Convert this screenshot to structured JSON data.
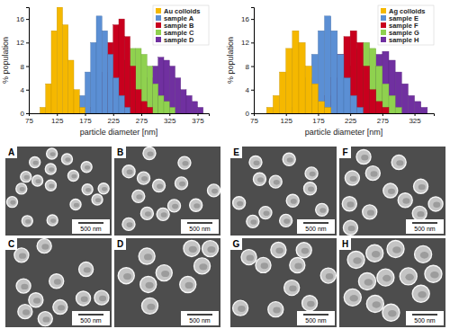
{
  "chart_data": [
    {
      "type": "histogram",
      "x_label": "particle diameter [nm]",
      "y_label": "% population",
      "bins": [
        75,
        85,
        95,
        105,
        115,
        125,
        135,
        145,
        155,
        165,
        175,
        185,
        195,
        205,
        215,
        225,
        235,
        245,
        255,
        265,
        275,
        285,
        295,
        305,
        315,
        325,
        335,
        345,
        355,
        365,
        375,
        385,
        395
      ],
      "series": [
        {
          "name": "Au colloids",
          "color": "#f5b800",
          "values": [
            0,
            0,
            1,
            5,
            14,
            18,
            15,
            9,
            4,
            1,
            0,
            0,
            0,
            0,
            0,
            0,
            0,
            0,
            0,
            0,
            0,
            0,
            0,
            0,
            0,
            0,
            0,
            0,
            0,
            0,
            0,
            0
          ]
        },
        {
          "name": "sample A",
          "color": "#5b8fd4",
          "values": [
            0,
            0,
            0,
            0,
            0,
            0,
            0,
            0,
            1,
            3,
            7,
            12,
            16.5,
            14,
            10,
            6,
            3,
            1,
            0,
            0,
            0,
            0,
            0,
            0,
            0,
            0,
            0,
            0,
            0,
            0,
            0,
            0
          ]
        },
        {
          "name": "sample B",
          "color": "#c8001e",
          "values": [
            0,
            0,
            0,
            0,
            0,
            0,
            0,
            0,
            0,
            0,
            0,
            1,
            3,
            7,
            12,
            15,
            16,
            13,
            8,
            4,
            2,
            1,
            0,
            0,
            0,
            0,
            0,
            0,
            0,
            0,
            0,
            0
          ]
        },
        {
          "name": "sample C",
          "color": "#8fd14f",
          "values": [
            0,
            0,
            0,
            0,
            0,
            0,
            0,
            0,
            0,
            0,
            0,
            0,
            0,
            0,
            1,
            3,
            6,
            9,
            11,
            11,
            10,
            8,
            5,
            3,
            2,
            1,
            0,
            0,
            0,
            0,
            0,
            0
          ]
        },
        {
          "name": "sample D",
          "color": "#7030a0",
          "values": [
            0,
            0,
            0,
            0,
            0,
            0,
            0,
            0,
            0,
            0,
            0,
            0,
            0,
            0,
            0,
            0,
            0,
            0,
            1,
            2,
            4,
            6,
            8,
            9.5,
            9,
            8,
            6,
            4,
            3,
            2,
            1,
            0
          ]
        }
      ],
      "xlim": [
        75,
        395
      ],
      "ylim": [
        0,
        18
      ],
      "xticks": [
        75,
        125,
        175,
        225,
        275,
        325,
        375
      ],
      "yticks": [
        0,
        4,
        8,
        12,
        16
      ],
      "legend": "top-right"
    },
    {
      "type": "histogram",
      "x_label": "particle diameter [nm]",
      "y_label": "% population",
      "bins": [
        75,
        85,
        95,
        105,
        115,
        125,
        135,
        145,
        155,
        165,
        175,
        185,
        195,
        205,
        215,
        225,
        235,
        245,
        255,
        265,
        275,
        285,
        295,
        305,
        315,
        325,
        335,
        345,
        355
      ],
      "series": [
        {
          "name": "Ag colloids",
          "color": "#f5b800",
          "values": [
            0,
            0,
            1,
            3,
            7,
            11,
            14,
            12,
            8,
            5,
            2,
            1,
            0,
            0,
            0,
            0,
            0,
            0,
            0,
            0,
            0,
            0,
            0,
            0,
            0,
            0,
            0,
            0
          ]
        },
        {
          "name": "sample E",
          "color": "#5b8fd4",
          "values": [
            0,
            0,
            0,
            0,
            0,
            0,
            1,
            3,
            6,
            10,
            14,
            16.5,
            14,
            10,
            6,
            3,
            1,
            0,
            0,
            0,
            0,
            0,
            0,
            0,
            0,
            0,
            0,
            0
          ]
        },
        {
          "name": "sample F",
          "color": "#c8001e",
          "values": [
            0,
            0,
            0,
            0,
            0,
            0,
            0,
            0,
            0,
            0,
            1,
            3,
            6,
            10,
            13,
            14,
            12,
            8,
            4,
            2,
            1,
            0,
            0,
            0,
            0,
            0,
            0,
            0
          ]
        },
        {
          "name": "sample G",
          "color": "#8fd14f",
          "values": [
            0,
            0,
            0,
            0,
            0,
            0,
            0,
            0,
            0,
            0,
            0,
            0,
            1,
            3,
            5,
            8,
            11,
            12,
            11,
            8,
            5,
            3,
            1,
            0,
            0,
            0,
            0,
            0
          ]
        },
        {
          "name": "sample H",
          "color": "#7030a0",
          "values": [
            0,
            0,
            0,
            0,
            0,
            0,
            0,
            0,
            0,
            0,
            0,
            0,
            0,
            0,
            1,
            2,
            4,
            6,
            8,
            10,
            10.5,
            9,
            7,
            5,
            3,
            2,
            1,
            0
          ]
        }
      ],
      "xlim": [
        75,
        355
      ],
      "ylim": [
        0,
        18
      ],
      "xticks": [
        75,
        125,
        175,
        225,
        275,
        325
      ],
      "yticks": [
        0,
        4,
        8,
        12,
        16
      ],
      "legend": "top-right"
    }
  ],
  "micrographs": [
    {
      "label": "A",
      "scale_bar": "500 nm"
    },
    {
      "label": "B",
      "scale_bar": "500 nm"
    },
    {
      "label": "C",
      "scale_bar": "500 nm"
    },
    {
      "label": "D",
      "scale_bar": "500 nm"
    },
    {
      "label": "E",
      "scale_bar": "500 nm"
    },
    {
      "label": "F",
      "scale_bar": "500 nm"
    },
    {
      "label": "G",
      "scale_bar": "500 nm"
    },
    {
      "label": "H",
      "scale_bar": "500 nm"
    }
  ]
}
